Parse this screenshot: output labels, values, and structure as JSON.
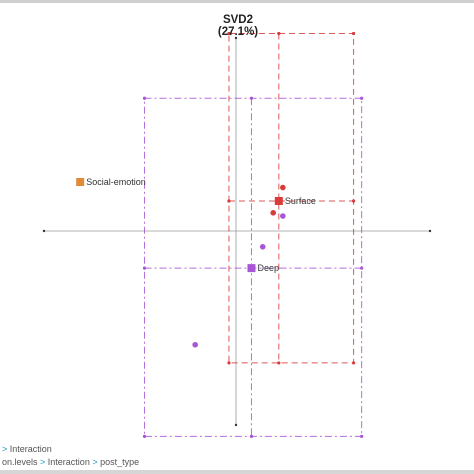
{
  "chart_data": {
    "type": "scatter",
    "y_axis_title_line1": "SVD2",
    "y_axis_title_line2": "(27.1%)",
    "points": [
      {
        "label": "Social-emotion",
        "shape": "square",
        "color": "#e08a3a",
        "x": -1.95,
        "y": 0.62
      },
      {
        "label": "Surface",
        "shape": "square",
        "color": "#d93a3a",
        "x": 0.52,
        "y": 0.38
      },
      {
        "label": "Deep",
        "shape": "square",
        "color": "#a855d6",
        "x": 0.18,
        "y": -0.47
      },
      {
        "label": "",
        "shape": "circle",
        "color": "#d93a3a",
        "x": 0.57,
        "y": 0.55
      },
      {
        "label": "",
        "shape": "circle",
        "color": "#d93a3a",
        "x": 0.45,
        "y": 0.23
      },
      {
        "label": "",
        "shape": "circle",
        "color": "#a855d6",
        "x": 0.57,
        "y": 0.19
      },
      {
        "label": "",
        "shape": "circle",
        "color": "#a855d6",
        "x": 0.32,
        "y": -0.2
      },
      {
        "label": "",
        "shape": "circle",
        "color": "#a855d6",
        "x": -0.52,
        "y": -1.44
      }
    ],
    "boxes": [
      {
        "group": "Surface",
        "color": "#d93a3a",
        "x": [
          -0.1,
          1.45
        ],
        "y": [
          -1.67,
          2.5
        ]
      },
      {
        "group": "Deep",
        "color": "#a855d6",
        "x": [
          -1.15,
          1.55
        ],
        "y": [
          -2.6,
          1.68
        ]
      }
    ],
    "xlim": [
      -2.4,
      2.4
    ],
    "ylim": [
      -2.6,
      2.6
    ]
  },
  "breadcrumbs": {
    "row1": {
      "items": [
        "",
        "Interaction"
      ]
    },
    "row2": {
      "items": [
        "on.levels",
        "Interaction",
        "post_type"
      ]
    }
  },
  "colors": {
    "separator": "#1a9cc4",
    "axis": "#9a9a9a"
  }
}
